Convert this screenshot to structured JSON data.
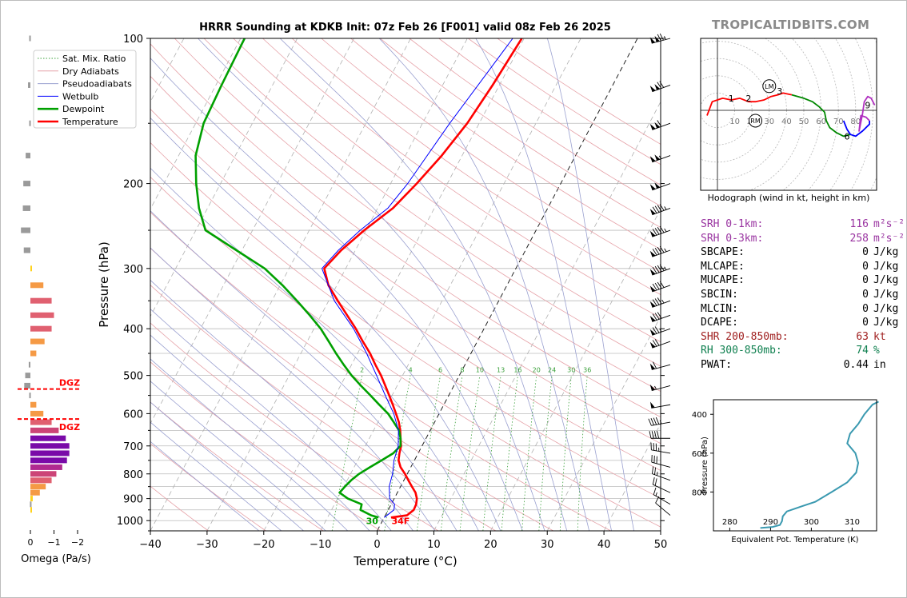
{
  "site_title": "TROPICALTIDBITS.COM",
  "chart_title": "HRRR Sounding at KDKB Init: 07z Feb 26 [F001] valid 08z Feb 26 2025",
  "chart_data": [
    {
      "type": "line",
      "name": "skew-t",
      "title": "HRRR Sounding at KDKB Init: 07z Feb 26 [F001] valid 08z Feb 26 2025",
      "xlabel": "Temperature (°C)",
      "ylabel": "Pressure (hPa)",
      "xlim": [
        -40,
        50
      ],
      "ylim": [
        1050,
        100
      ],
      "y_scale": "log",
      "x_ticks": [
        "−40",
        "−30",
        "−20",
        "−10",
        "0",
        "10",
        "20",
        "30",
        "40",
        "50"
      ],
      "y_ticks": [
        "100",
        "200",
        "300",
        "400",
        "500",
        "600",
        "700",
        "800",
        "900",
        "1000"
      ],
      "legend": [
        "Sat. Mix. Ratio",
        "Dry Adiabats",
        "Pseudoadiabats",
        "Wetbulb",
        "Dewpoint",
        "Temperature"
      ],
      "legend_position": "top-left",
      "mixing_ratio_labels": [
        "2",
        "4",
        "6",
        "8",
        "10",
        "13",
        "16",
        "20",
        "24",
        "30",
        "36"
      ],
      "surface_labels": {
        "dewpoint": "30",
        "temperature": "34F"
      },
      "series": [
        {
          "name": "Temperature",
          "color": "#ff0000",
          "p": [
            985,
            975,
            950,
            925,
            900,
            875,
            850,
            825,
            800,
            775,
            750,
            725,
            700,
            675,
            650,
            625,
            600,
            575,
            550,
            525,
            500,
            475,
            450,
            425,
            400,
            375,
            350,
            325,
            300,
            275,
            250,
            225,
            200,
            175,
            150,
            125,
            100
          ],
          "t": [
            1.2,
            3.8,
            4.5,
            4.4,
            4.0,
            3.2,
            2.0,
            0.8,
            -0.4,
            -1.8,
            -2.8,
            -3.3,
            -3.7,
            -4.5,
            -5.3,
            -6.3,
            -7.6,
            -9.0,
            -10.5,
            -12.1,
            -13.8,
            -15.8,
            -17.8,
            -20.2,
            -22.6,
            -25.4,
            -28.4,
            -31.5,
            -33.8,
            -32.5,
            -30.3,
            -27.3,
            -25.4,
            -23.6,
            -22.1,
            -21.2,
            -20.4
          ]
        },
        {
          "name": "Dewpoint",
          "color": "#00a000",
          "p": [
            985,
            975,
            950,
            925,
            900,
            875,
            850,
            825,
            800,
            775,
            750,
            725,
            700,
            675,
            650,
            625,
            600,
            575,
            550,
            525,
            500,
            475,
            450,
            425,
            400,
            375,
            350,
            325,
            300,
            275,
            250,
            225,
            200,
            175,
            150,
            125,
            100
          ],
          "t": [
            -1.0,
            -2.5,
            -4.9,
            -5.2,
            -8.2,
            -10.2,
            -9.8,
            -9.3,
            -8.5,
            -7.2,
            -5.8,
            -4.4,
            -3.8,
            -4.5,
            -5.5,
            -7.2,
            -9.0,
            -11.4,
            -13.8,
            -16.4,
            -19.0,
            -21.4,
            -23.8,
            -26.2,
            -28.8,
            -32.0,
            -35.6,
            -39.6,
            -44.3,
            -51.0,
            -58.3,
            -61.5,
            -64.3,
            -67.0,
            -68.6,
            -69.0,
            -69.3
          ]
        },
        {
          "name": "Wetbulb",
          "color": "#0000ff",
          "p": [
            985,
            950,
            925,
            900,
            850,
            800,
            750,
            700,
            650,
            600,
            550,
            500,
            450,
            400,
            350,
            300,
            275,
            250,
            225,
            200,
            150,
            100
          ],
          "t": [
            0.0,
            1.0,
            0.6,
            -0.8,
            -2.0,
            -2.6,
            -3.6,
            -4.2,
            -5.6,
            -8.0,
            -11.2,
            -14.6,
            -18.4,
            -23.0,
            -29.0,
            -34.2,
            -33.0,
            -31.0,
            -28.2,
            -27.0,
            -25.2,
            -22.0
          ]
        }
      ]
    },
    {
      "type": "bar",
      "name": "omega-profile",
      "xlabel": "Omega (Pa/s)",
      "xlim": [
        0,
        -2
      ],
      "x_ticks": [
        "0",
        "−1",
        "−2"
      ],
      "dgz_label": "DGZ",
      "dgz_label_2": "DGZ",
      "dgz_bounds_hPa": [
        550,
        625
      ],
      "bars": [
        {
          "p": 100,
          "v": 0.05
        },
        {
          "p": 125,
          "v": 0.1
        },
        {
          "p": 150,
          "v": 0.05
        },
        {
          "p": 175,
          "v": 0.2
        },
        {
          "p": 200,
          "v": 0.3
        },
        {
          "p": 225,
          "v": 0.32
        },
        {
          "p": 250,
          "v": 0.4
        },
        {
          "p": 275,
          "v": 0.28
        },
        {
          "p": 300,
          "v": -0.02
        },
        {
          "p": 325,
          "v": -0.55
        },
        {
          "p": 350,
          "v": -0.9
        },
        {
          "p": 375,
          "v": -1.0
        },
        {
          "p": 400,
          "v": -0.9
        },
        {
          "p": 425,
          "v": -0.6
        },
        {
          "p": 450,
          "v": -0.25
        },
        {
          "p": 475,
          "v": 0.07
        },
        {
          "p": 500,
          "v": 0.22
        },
        {
          "p": 525,
          "v": 0.26
        },
        {
          "p": 550,
          "v": 0.05
        },
        {
          "p": 575,
          "v": -0.25
        },
        {
          "p": 600,
          "v": -0.55
        },
        {
          "p": 625,
          "v": -0.9
        },
        {
          "p": 650,
          "v": -1.2
        },
        {
          "p": 675,
          "v": -1.5
        },
        {
          "p": 700,
          "v": -1.65
        },
        {
          "p": 725,
          "v": -1.65
        },
        {
          "p": 750,
          "v": -1.55
        },
        {
          "p": 775,
          "v": -1.35
        },
        {
          "p": 800,
          "v": -1.1
        },
        {
          "p": 825,
          "v": -0.9
        },
        {
          "p": 850,
          "v": -0.65
        },
        {
          "p": 875,
          "v": -0.4
        },
        {
          "p": 900,
          "v": -0.1
        },
        {
          "p": 925,
          "v": 0.02
        },
        {
          "p": 950,
          "v": -0.05
        }
      ]
    },
    {
      "type": "line",
      "name": "hodograph",
      "xlabel": "Hodograph (wind in kt, height in km)",
      "ring_labels": [
        "10",
        "20",
        "30",
        "40",
        "50",
        "60",
        "70",
        "80"
      ],
      "height_labels": [
        "1",
        "2",
        "3",
        "6",
        "9"
      ],
      "storm_motion_labels": [
        "LM",
        "RM"
      ],
      "segments": [
        {
          "color": "#ff0000",
          "pts": [
            [
              -6,
              -3
            ],
            [
              -3,
              5
            ],
            [
              0,
              6
            ],
            [
              3,
              7
            ],
            [
              8,
              6
            ],
            [
              13,
              7
            ],
            [
              18,
              5
            ],
            [
              22,
              5
            ],
            [
              27,
              6
            ],
            [
              31,
              8
            ],
            [
              35,
              9
            ],
            [
              38,
              10
            ],
            [
              43,
              9
            ]
          ]
        },
        {
          "color": "#008800",
          "pts": [
            [
              43,
              9
            ],
            [
              50,
              7
            ],
            [
              55,
              5
            ],
            [
              59,
              2
            ],
            [
              62,
              -1
            ],
            [
              63,
              -6
            ],
            [
              65,
              -10
            ],
            [
              69,
              -13
            ],
            [
              73,
              -15
            ],
            [
              77,
              -14
            ]
          ]
        },
        {
          "color": "#0000ff",
          "pts": [
            [
              73,
              -6
            ],
            [
              75,
              -11
            ],
            [
              77,
              -14
            ],
            [
              80,
              -15
            ],
            [
              84,
              -12
            ],
            [
              88,
              -8
            ],
            [
              88,
              -6
            ]
          ]
        },
        {
          "color": "#b030c0",
          "pts": [
            [
              88,
              -6
            ],
            [
              86,
              -4
            ],
            [
              83,
              -3
            ],
            [
              82,
              -12
            ],
            [
              84,
              -2
            ],
            [
              85,
              5
            ],
            [
              87,
              8
            ],
            [
              89,
              7
            ],
            [
              91,
              3
            ]
          ]
        }
      ],
      "storm_motion": {
        "LM": [
          30,
          14
        ],
        "RM": [
          22,
          -6
        ]
      }
    },
    {
      "type": "line",
      "name": "theta-e-profile",
      "xlabel": "Equivalent Pot. Temperature (K)",
      "ylabel": "Pressure (hPa)",
      "xlim": [
        276,
        316
      ],
      "ylim": [
        1000,
        325
      ],
      "x_ticks": [
        "280",
        "290",
        "300",
        "310"
      ],
      "y_ticks": [
        "400",
        "600",
        "800"
      ],
      "series": [
        {
          "color": "#3a99b0",
          "p": [
            985,
            980,
            970,
            950,
            925,
            900,
            875,
            850,
            800,
            750,
            700,
            650,
            600,
            550,
            500,
            450,
            400,
            375,
            350,
            335
          ],
          "te": [
            287.5,
            290.5,
            292.3,
            292.8,
            293.0,
            294.0,
            297.5,
            301.0,
            305.0,
            308.8,
            311.0,
            311.5,
            310.8,
            308.8,
            309.5,
            311.5,
            313.0,
            314.0,
            315.0,
            316.5
          ]
        }
      ]
    }
  ],
  "stats": [
    {
      "label": "SRH 0-1km:",
      "value": "116",
      "unit": "m²s⁻²",
      "color": "#9933a0"
    },
    {
      "label": "SRH 0-3km:",
      "value": "258",
      "unit": "m²s⁻²",
      "color": "#9933a0"
    },
    {
      "label": "SBCAPE:",
      "value": "0",
      "unit": "J/kg",
      "color": "#000000"
    },
    {
      "label": "MLCAPE:",
      "value": "0",
      "unit": "J/kg",
      "color": "#000000"
    },
    {
      "label": "MUCAPE:",
      "value": "0",
      "unit": "J/kg",
      "color": "#000000"
    },
    {
      "label": "SBCIN:",
      "value": "0",
      "unit": "J/kg",
      "color": "#000000"
    },
    {
      "label": "MLCIN:",
      "value": "0",
      "unit": "J/kg",
      "color": "#000000"
    },
    {
      "label": "DCAPE:",
      "value": "0",
      "unit": "J/kg",
      "color": "#000000"
    },
    {
      "label": "SHR 200-850mb:",
      "value": "63",
      "unit": "kt",
      "color": "#a02020"
    },
    {
      "label": "RH 300-850mb:",
      "value": "74",
      "unit": "%",
      "color": "#108050"
    },
    {
      "label": "PWAT:",
      "value": "0.44",
      "unit": "in",
      "color": "#000000"
    }
  ],
  "wind_barbs": [
    {
      "p": 100,
      "dir": 255,
      "kt": 125
    },
    {
      "p": 125,
      "dir": 250,
      "kt": 120
    },
    {
      "p": 150,
      "dir": 250,
      "kt": 110
    },
    {
      "p": 175,
      "dir": 250,
      "kt": 105
    },
    {
      "p": 200,
      "dir": 250,
      "kt": 100
    },
    {
      "p": 225,
      "dir": 250,
      "kt": 95
    },
    {
      "p": 250,
      "dir": 250,
      "kt": 95
    },
    {
      "p": 275,
      "dir": 250,
      "kt": 95
    },
    {
      "p": 300,
      "dir": 250,
      "kt": 95
    },
    {
      "p": 325,
      "dir": 250,
      "kt": 90
    },
    {
      "p": 350,
      "dir": 250,
      "kt": 85
    },
    {
      "p": 375,
      "dir": 250,
      "kt": 80
    },
    {
      "p": 400,
      "dir": 250,
      "kt": 75
    },
    {
      "p": 425,
      "dir": 250,
      "kt": 70
    },
    {
      "p": 475,
      "dir": 255,
      "kt": 60
    },
    {
      "p": 525,
      "dir": 255,
      "kt": 55
    },
    {
      "p": 575,
      "dir": 260,
      "kt": 50
    },
    {
      "p": 625,
      "dir": 260,
      "kt": 45
    },
    {
      "p": 675,
      "dir": 270,
      "kt": 40
    },
    {
      "p": 725,
      "dir": 280,
      "kt": 35
    },
    {
      "p": 775,
      "dir": 285,
      "kt": 30
    },
    {
      "p": 825,
      "dir": 290,
      "kt": 25
    },
    {
      "p": 875,
      "dir": 295,
      "kt": 20
    },
    {
      "p": 925,
      "dir": 300,
      "kt": 15
    },
    {
      "p": 975,
      "dir": 310,
      "kt": 10
    }
  ]
}
